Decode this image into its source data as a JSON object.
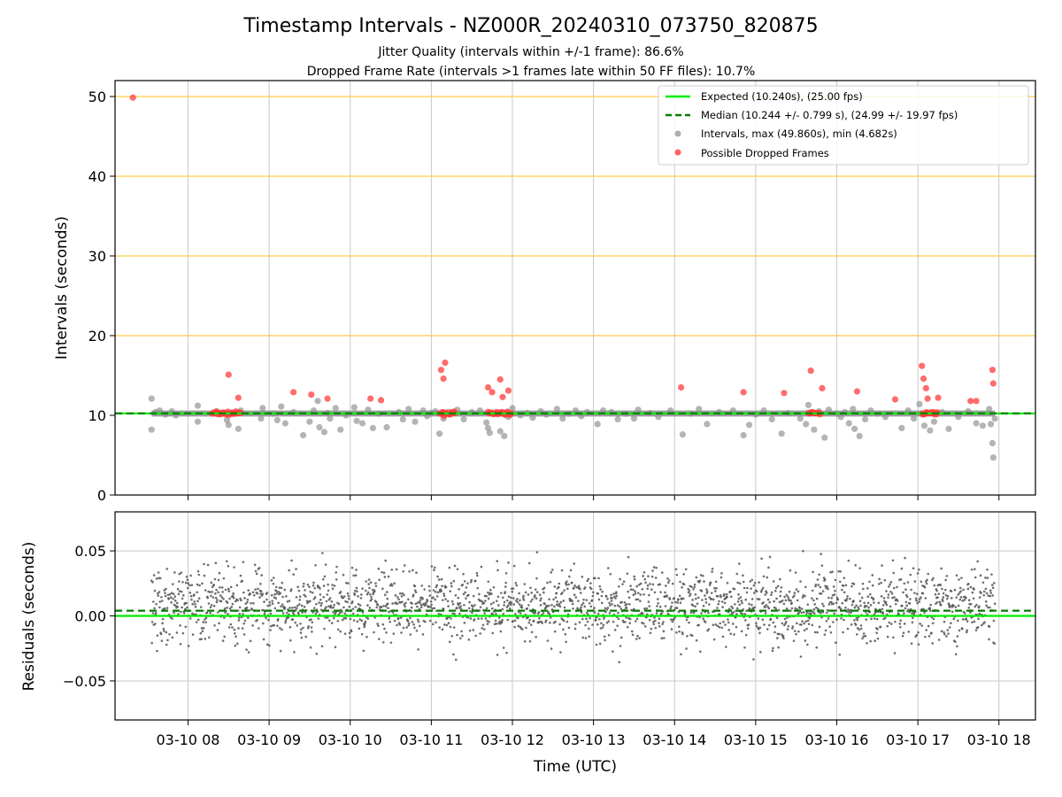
{
  "title": "Timestamp Intervals - NZ000R_20240310_073750_820875",
  "subtitle_1": "Jitter Quality (intervals within +/-1 frame): 86.6%",
  "subtitle_2": "Dropped Frame Rate (intervals >1 frames late within 50 FF files): 10.7%",
  "colors": {
    "expected": "#00ee00",
    "median": "#007a00",
    "intervals": "#8c8c8c",
    "dropped": "#ff3b3b",
    "threshold_lines": "#ffc94a",
    "grid": "#c8c8c8"
  },
  "chart_data": [
    {
      "type": "scatter",
      "xlabel": "",
      "ylabel": "Intervals (seconds)",
      "xlim": [
        7.1,
        18.45
      ],
      "ylim": [
        0,
        52
      ],
      "y_ticks": [
        0,
        10,
        20,
        30,
        40,
        50
      ],
      "x_ticks": [
        8,
        9,
        10,
        11,
        12,
        13,
        14,
        15,
        16,
        17,
        18
      ],
      "horizontal_lines": [
        20,
        30,
        40,
        50
      ],
      "grid": "vertical",
      "legend_position": "top-right",
      "legend": [
        "Expected (10.240s), (25.00 fps)",
        "Median (10.244 +/- 0.799 s), (24.99 +/- 19.97 fps)",
        "Intervals, max (49.860s), min (4.682s)",
        "Possible Dropped Frames"
      ],
      "expected": 10.24,
      "median": 10.244,
      "series": [
        {
          "name": "Intervals, max (49.860s), min (4.682s)",
          "points": [
            [
              7.55,
              12.1
            ],
            [
              7.55,
              8.2
            ],
            [
              7.6,
              10.4
            ],
            [
              7.65,
              10.6
            ],
            [
              7.72,
              10.1
            ],
            [
              7.8,
              10.5
            ],
            [
              7.85,
              10.0
            ],
            [
              8.12,
              11.2
            ],
            [
              8.12,
              9.2
            ],
            [
              8.35,
              10.5
            ],
            [
              8.48,
              9.4
            ],
            [
              8.5,
              8.8
            ],
            [
              8.62,
              8.3
            ],
            [
              8.65,
              10.6
            ],
            [
              8.9,
              9.6
            ],
            [
              8.92,
              10.9
            ],
            [
              9.05,
              10.2
            ],
            [
              9.1,
              9.4
            ],
            [
              9.15,
              11.1
            ],
            [
              9.2,
              9.0
            ],
            [
              9.3,
              10.4
            ],
            [
              9.42,
              7.5
            ],
            [
              9.5,
              9.2
            ],
            [
              9.55,
              10.6
            ],
            [
              9.6,
              11.8
            ],
            [
              9.62,
              8.5
            ],
            [
              9.68,
              7.9
            ],
            [
              9.72,
              10.3
            ],
            [
              9.75,
              9.6
            ],
            [
              9.82,
              10.9
            ],
            [
              9.88,
              8.2
            ],
            [
              9.95,
              10.0
            ],
            [
              10.05,
              11.0
            ],
            [
              10.08,
              9.3
            ],
            [
              10.15,
              9.0
            ],
            [
              10.22,
              10.7
            ],
            [
              10.28,
              8.4
            ],
            [
              10.35,
              10.2
            ],
            [
              10.45,
              8.5
            ],
            [
              10.6,
              10.4
            ],
            [
              10.65,
              9.5
            ],
            [
              10.72,
              10.8
            ],
            [
              10.8,
              9.2
            ],
            [
              10.9,
              10.6
            ],
            [
              10.95,
              9.9
            ],
            [
              11.0,
              10.3
            ],
            [
              11.05,
              10.5
            ],
            [
              11.1,
              7.7
            ],
            [
              11.15,
              9.6
            ],
            [
              11.22,
              10.4
            ],
            [
              11.32,
              10.7
            ],
            [
              11.4,
              9.5
            ],
            [
              11.5,
              10.4
            ],
            [
              11.6,
              10.6
            ],
            [
              11.68,
              9.1
            ],
            [
              11.7,
              8.4
            ],
            [
              11.72,
              7.8
            ],
            [
              11.78,
              10.2
            ],
            [
              11.85,
              8.0
            ],
            [
              11.9,
              7.4
            ],
            [
              11.95,
              9.8
            ],
            [
              12.0,
              10.9
            ],
            [
              12.1,
              10.0
            ],
            [
              12.18,
              10.3
            ],
            [
              12.25,
              9.7
            ],
            [
              12.35,
              10.5
            ],
            [
              12.42,
              10.1
            ],
            [
              12.55,
              10.8
            ],
            [
              12.62,
              9.6
            ],
            [
              12.7,
              10.2
            ],
            [
              12.78,
              10.6
            ],
            [
              12.85,
              9.9
            ],
            [
              12.92,
              10.4
            ],
            [
              13.05,
              8.9
            ],
            [
              13.12,
              10.6
            ],
            [
              13.22,
              10.4
            ],
            [
              13.3,
              9.5
            ],
            [
              13.4,
              10.2
            ],
            [
              13.5,
              9.6
            ],
            [
              13.55,
              10.7
            ],
            [
              13.7,
              10.3
            ],
            [
              13.8,
              9.8
            ],
            [
              13.95,
              10.6
            ],
            [
              14.1,
              7.6
            ],
            [
              14.2,
              10.2
            ],
            [
              14.3,
              10.8
            ],
            [
              14.4,
              8.9
            ],
            [
              14.55,
              10.4
            ],
            [
              14.72,
              10.6
            ],
            [
              14.85,
              7.5
            ],
            [
              14.92,
              8.8
            ],
            [
              15.0,
              10.1
            ],
            [
              15.1,
              10.6
            ],
            [
              15.2,
              9.5
            ],
            [
              15.32,
              7.7
            ],
            [
              15.4,
              10.3
            ],
            [
              15.55,
              9.6
            ],
            [
              15.62,
              8.9
            ],
            [
              15.65,
              11.3
            ],
            [
              15.72,
              8.2
            ],
            [
              15.78,
              10.5
            ],
            [
              15.85,
              7.2
            ],
            [
              15.9,
              10.7
            ],
            [
              16.0,
              10.2
            ],
            [
              16.05,
              9.8
            ],
            [
              16.1,
              10.4
            ],
            [
              16.15,
              9.0
            ],
            [
              16.2,
              10.8
            ],
            [
              16.22,
              8.3
            ],
            [
              16.28,
              7.4
            ],
            [
              16.35,
              9.5
            ],
            [
              16.42,
              10.6
            ],
            [
              16.5,
              10.2
            ],
            [
              16.6,
              9.8
            ],
            [
              16.8,
              8.4
            ],
            [
              16.88,
              10.6
            ],
            [
              16.95,
              9.6
            ],
            [
              17.02,
              11.4
            ],
            [
              17.08,
              8.7
            ],
            [
              17.15,
              8.1
            ],
            [
              17.2,
              9.2
            ],
            [
              17.3,
              10.4
            ],
            [
              17.38,
              8.3
            ],
            [
              17.5,
              9.8
            ],
            [
              17.62,
              10.5
            ],
            [
              17.72,
              9.0
            ],
            [
              17.8,
              8.7
            ],
            [
              17.88,
              10.8
            ],
            [
              17.9,
              8.9
            ],
            [
              17.92,
              6.5
            ],
            [
              17.93,
              4.7
            ],
            [
              17.95,
              9.6
            ]
          ]
        },
        {
          "name": "Possible Dropped Frames",
          "points": [
            [
              7.32,
              49.86
            ],
            [
              8.5,
              15.1
            ],
            [
              8.62,
              12.2
            ],
            [
              9.3,
              12.9
            ],
            [
              9.52,
              12.6
            ],
            [
              9.72,
              12.1
            ],
            [
              10.25,
              12.1
            ],
            [
              10.38,
              11.9
            ],
            [
              11.12,
              15.7
            ],
            [
              11.15,
              14.6
            ],
            [
              11.17,
              16.6
            ],
            [
              11.7,
              13.5
            ],
            [
              11.75,
              12.9
            ],
            [
              11.85,
              14.5
            ],
            [
              11.88,
              12.3
            ],
            [
              11.95,
              13.1
            ],
            [
              14.08,
              13.5
            ],
            [
              14.85,
              12.9
            ],
            [
              15.35,
              12.8
            ],
            [
              15.68,
              15.6
            ],
            [
              15.82,
              13.4
            ],
            [
              16.25,
              13.0
            ],
            [
              16.72,
              12.0
            ],
            [
              17.05,
              16.2
            ],
            [
              17.07,
              14.6
            ],
            [
              17.1,
              13.4
            ],
            [
              17.12,
              12.1
            ],
            [
              17.25,
              12.2
            ],
            [
              17.65,
              11.8
            ],
            [
              17.72,
              11.8
            ],
            [
              17.92,
              15.7
            ],
            [
              17.93,
              14.0
            ]
          ],
          "clusters": [
            [
              8.3,
              8.65
            ],
            [
              11.1,
              11.3
            ],
            [
              11.7,
              12.0
            ],
            [
              15.65,
              15.8
            ],
            [
              17.05,
              17.25
            ]
          ]
        }
      ]
    },
    {
      "type": "scatter",
      "xlabel": "Time (UTC)",
      "ylabel": "Residuals (seconds)",
      "xlim": [
        7.1,
        18.45
      ],
      "ylim": [
        -0.08,
        0.08
      ],
      "y_ticks": [
        -0.05,
        0.0,
        0.05
      ],
      "y_tick_labels": [
        "−0.05",
        "0.00",
        "0.05"
      ],
      "x_ticks": [
        8,
        9,
        10,
        11,
        12,
        13,
        14,
        15,
        16,
        17,
        18
      ],
      "x_tick_labels": [
        "03-10 08",
        "03-10 09",
        "03-10 10",
        "03-10 11",
        "03-10 12",
        "03-10 13",
        "03-10 14",
        "03-10 15",
        "03-10 16",
        "03-10 17",
        "03-10 18"
      ],
      "grid": true,
      "expected": 0.0,
      "median": 0.004,
      "x_range": [
        7.55,
        17.95
      ],
      "center": 0.008,
      "spread": 0.02,
      "n_points": 2300
    }
  ]
}
